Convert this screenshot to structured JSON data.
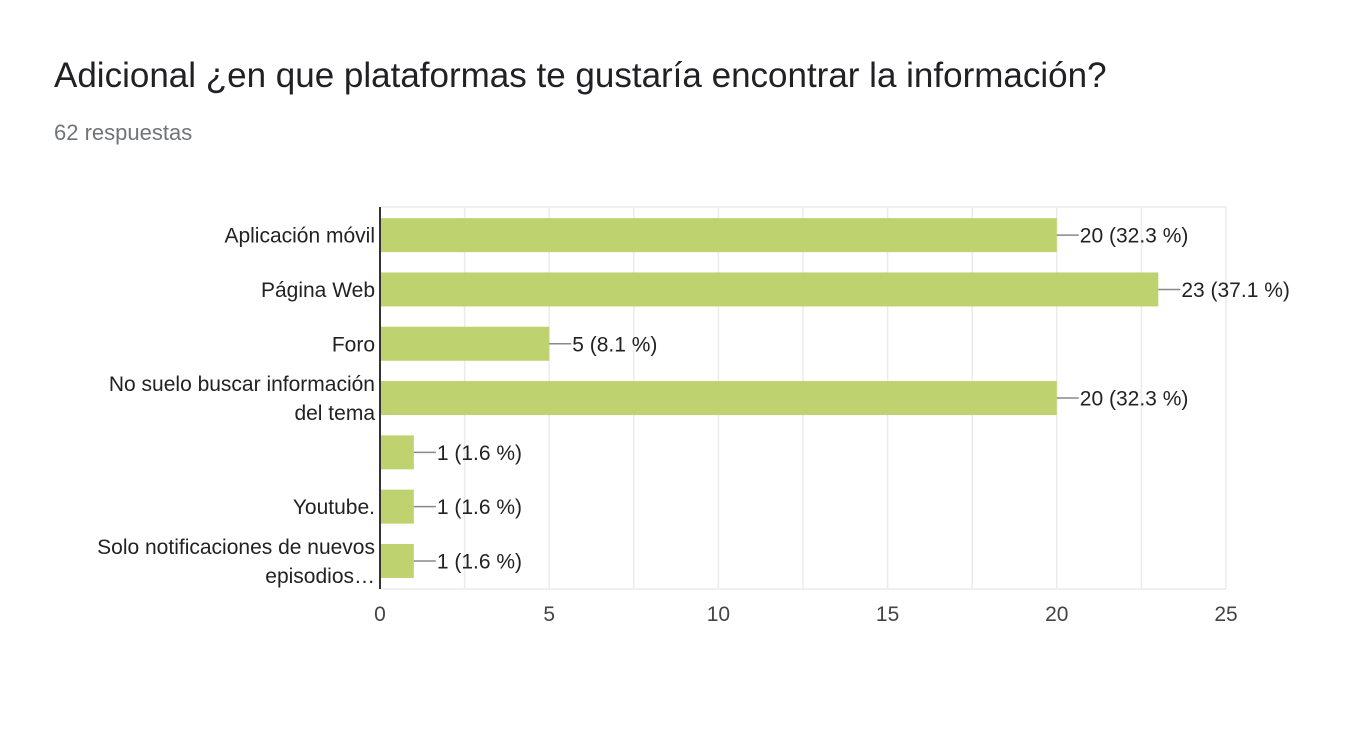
{
  "header": {
    "title": "Adicional ¿en que plataformas te gustaría encontrar la información?",
    "responses": "62 respuestas"
  },
  "colors": {
    "bar": "#bfd270",
    "grid": "#ebebeb",
    "axis": "#333333",
    "leader": "#888888"
  },
  "chart_data": {
    "type": "bar",
    "orientation": "horizontal",
    "categories": [
      [
        "Aplicación móvil"
      ],
      [
        "Página Web"
      ],
      [
        "Foro"
      ],
      [
        "No suelo buscar información",
        "del tema"
      ],
      [
        ""
      ],
      [
        "Youtube."
      ],
      [
        "Solo notificaciones de nuevos",
        "episodios…"
      ]
    ],
    "values": [
      20,
      23,
      5,
      20,
      1,
      1,
      1
    ],
    "data_labels": [
      "20 (32.3 %)",
      "23 (37.1 %)",
      "5 (8.1 %)",
      "20 (32.3 %)",
      "1 (1.6 %)",
      "1 (1.6 %)",
      "1 (1.6 %)"
    ],
    "xlim": [
      0,
      25
    ],
    "xticks": [
      0,
      5,
      10,
      15,
      20,
      25
    ],
    "grid": true
  }
}
